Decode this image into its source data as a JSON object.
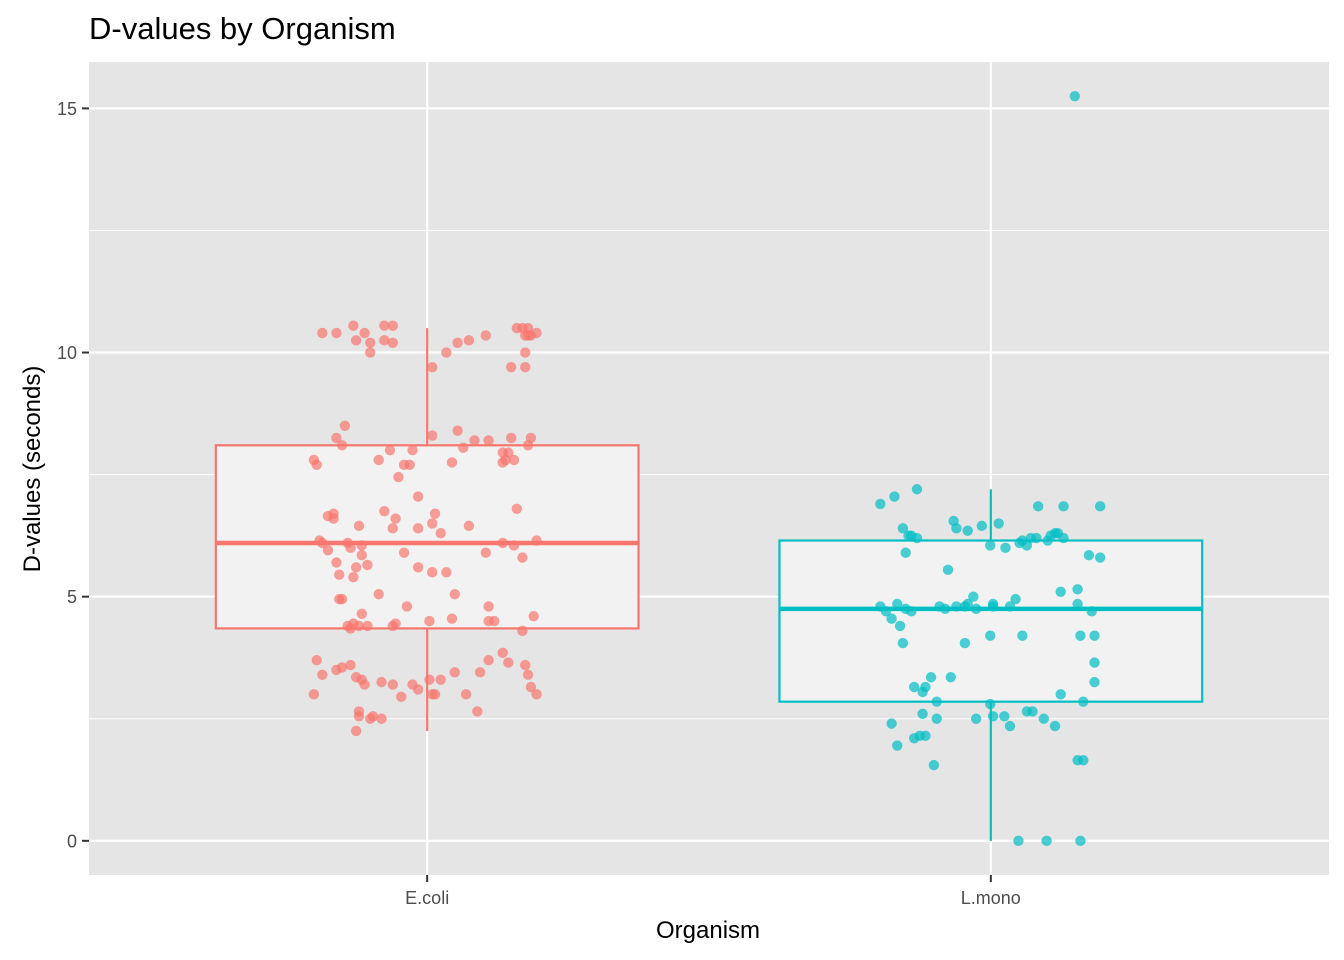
{
  "chart_data": {
    "type": "boxplot",
    "title": "D-values by Organism",
    "xlabel": "Organism",
    "ylabel": "D-values (seconds)",
    "categories": [
      "E.coli",
      "L.mono"
    ],
    "ylim": [
      -0.7,
      15.95
    ],
    "yticks": [
      0,
      5,
      10,
      15
    ],
    "grid": true,
    "legend": "none",
    "background": "#e5e5e5",
    "series": [
      {
        "category": "E.coli",
        "color": "#f8766d",
        "box": {
          "min": 2.25,
          "q1": 4.35,
          "median": 6.1,
          "q3": 8.1,
          "max": 10.5
        },
        "points": [
          [
            -0.186,
            10.4
          ],
          [
            -0.161,
            10.4
          ],
          [
            -0.131,
            10.55
          ],
          [
            -0.126,
            10.25
          ],
          [
            -0.111,
            10.4
          ],
          [
            -0.101,
            10.2
          ],
          [
            -0.101,
            10.0
          ],
          [
            -0.076,
            10.25
          ],
          [
            -0.076,
            10.55
          ],
          [
            -0.061,
            10.2
          ],
          [
            -0.061,
            10.55
          ],
          [
            0.034,
            10.0
          ],
          [
            0.054,
            10.2
          ],
          [
            0.074,
            10.25
          ],
          [
            0.104,
            10.35
          ],
          [
            0.159,
            10.5
          ],
          [
            0.169,
            10.5
          ],
          [
            0.174,
            10.35
          ],
          [
            0.179,
            10.5
          ],
          [
            0.179,
            10.35
          ],
          [
            0.184,
            10.35
          ],
          [
            0.174,
            10.0
          ],
          [
            0.194,
            10.4
          ],
          [
            0.149,
            9.7
          ],
          [
            0.174,
            9.7
          ],
          [
            0.009,
            9.7
          ],
          [
            -0.146,
            8.5
          ],
          [
            -0.161,
            8.25
          ],
          [
            -0.151,
            8.1
          ],
          [
            -0.201,
            7.8
          ],
          [
            -0.196,
            7.7
          ],
          [
            -0.086,
            7.8
          ],
          [
            -0.066,
            8.0
          ],
          [
            -0.051,
            7.45
          ],
          [
            -0.041,
            7.7
          ],
          [
            -0.031,
            7.7
          ],
          [
            -0.026,
            8.0
          ],
          [
            0.009,
            8.3
          ],
          [
            0.044,
            7.75
          ],
          [
            0.054,
            8.4
          ],
          [
            0.084,
            8.2
          ],
          [
            0.064,
            8.05
          ],
          [
            0.109,
            8.2
          ],
          [
            0.134,
            7.95
          ],
          [
            0.134,
            7.75
          ],
          [
            0.139,
            7.8
          ],
          [
            0.144,
            7.95
          ],
          [
            0.149,
            8.25
          ],
          [
            0.154,
            7.8
          ],
          [
            0.179,
            8.1
          ],
          [
            0.184,
            8.25
          ],
          [
            -0.176,
            6.65
          ],
          [
            -0.166,
            6.7
          ],
          [
            -0.166,
            6.6
          ],
          [
            -0.121,
            6.45
          ],
          [
            -0.076,
            6.75
          ],
          [
            -0.061,
            6.4
          ],
          [
            -0.056,
            6.6
          ],
          [
            -0.016,
            7.05
          ],
          [
            -0.016,
            6.4
          ],
          [
            0.009,
            6.5
          ],
          [
            0.014,
            6.7
          ],
          [
            0.024,
            6.3
          ],
          [
            0.074,
            6.45
          ],
          [
            0.159,
            6.8
          ],
          [
            -0.191,
            6.15
          ],
          [
            -0.186,
            6.1
          ],
          [
            -0.176,
            5.95
          ],
          [
            -0.161,
            5.7
          ],
          [
            -0.156,
            5.45
          ],
          [
            -0.141,
            6.1
          ],
          [
            -0.136,
            6.0
          ],
          [
            -0.131,
            5.4
          ],
          [
            -0.126,
            5.6
          ],
          [
            -0.116,
            6.05
          ],
          [
            -0.116,
            5.85
          ],
          [
            -0.106,
            5.65
          ],
          [
            -0.041,
            5.9
          ],
          [
            -0.016,
            5.6
          ],
          [
            0.009,
            5.5
          ],
          [
            0.034,
            5.5
          ],
          [
            0.104,
            5.9
          ],
          [
            0.134,
            6.1
          ],
          [
            0.154,
            6.05
          ],
          [
            0.169,
            5.8
          ],
          [
            0.194,
            6.15
          ],
          [
            -0.156,
            4.95
          ],
          [
            -0.151,
            4.95
          ],
          [
            -0.116,
            4.65
          ],
          [
            -0.086,
            5.05
          ],
          [
            -0.036,
            4.8
          ],
          [
            -0.056,
            4.45
          ],
          [
            -0.061,
            4.4
          ],
          [
            0.004,
            4.5
          ],
          [
            0.049,
            5.05
          ],
          [
            0.044,
            4.55
          ],
          [
            0.109,
            4.8
          ],
          [
            0.109,
            4.5
          ],
          [
            0.119,
            4.5
          ],
          [
            0.169,
            4.3
          ],
          [
            0.189,
            4.6
          ],
          [
            -0.141,
            4.4
          ],
          [
            -0.131,
            4.45
          ],
          [
            -0.136,
            4.35
          ],
          [
            -0.121,
            4.4
          ],
          [
            -0.106,
            4.4
          ],
          [
            -0.196,
            3.7
          ],
          [
            -0.186,
            3.4
          ],
          [
            -0.161,
            3.5
          ],
          [
            -0.151,
            3.55
          ],
          [
            -0.136,
            3.6
          ],
          [
            -0.126,
            3.35
          ],
          [
            -0.116,
            3.3
          ],
          [
            -0.111,
            3.2
          ],
          [
            -0.081,
            3.25
          ],
          [
            -0.061,
            3.2
          ],
          [
            -0.046,
            2.95
          ],
          [
            -0.026,
            3.2
          ],
          [
            -0.016,
            3.1
          ],
          [
            0.004,
            3.3
          ],
          [
            0.009,
            3.0
          ],
          [
            0.014,
            3.0
          ],
          [
            0.024,
            3.3
          ],
          [
            0.049,
            3.45
          ],
          [
            0.069,
            3.0
          ],
          [
            0.094,
            3.45
          ],
          [
            0.109,
            3.7
          ],
          [
            0.134,
            3.85
          ],
          [
            0.144,
            3.65
          ],
          [
            0.174,
            3.6
          ],
          [
            0.179,
            3.4
          ],
          [
            0.184,
            3.15
          ],
          [
            0.194,
            3.0
          ],
          [
            -0.201,
            3.0
          ],
          [
            -0.121,
            2.65
          ],
          [
            -0.121,
            2.55
          ],
          [
            -0.101,
            2.5
          ],
          [
            -0.096,
            2.55
          ],
          [
            -0.081,
            2.5
          ],
          [
            -0.126,
            2.25
          ],
          [
            0.089,
            2.65
          ]
        ]
      },
      {
        "category": "L.mono",
        "color": "#00bfc4",
        "box": {
          "min": 0.0,
          "q1": 2.85,
          "median": 4.75,
          "q3": 6.15,
          "max": 7.2
        },
        "points": [
          [
            0.149,
            15.25
          ],
          [
            -0.196,
            6.9
          ],
          [
            -0.171,
            7.05
          ],
          [
            -0.131,
            7.2
          ],
          [
            -0.156,
            6.4
          ],
          [
            -0.146,
            6.25
          ],
          [
            -0.141,
            6.25
          ],
          [
            -0.131,
            6.2
          ],
          [
            -0.151,
            5.9
          ],
          [
            -0.066,
            6.55
          ],
          [
            -0.061,
            6.4
          ],
          [
            -0.041,
            6.35
          ],
          [
            -0.016,
            6.45
          ],
          [
            0.014,
            6.5
          ],
          [
            -0.001,
            6.05
          ],
          [
            0.026,
            6.0
          ],
          [
            0.051,
            6.1
          ],
          [
            0.056,
            6.15
          ],
          [
            0.064,
            6.05
          ],
          [
            0.071,
            6.2
          ],
          [
            0.081,
            6.2
          ],
          [
            0.101,
            6.15
          ],
          [
            0.106,
            6.25
          ],
          [
            0.114,
            6.3
          ],
          [
            0.119,
            6.3
          ],
          [
            0.129,
            6.2
          ],
          [
            0.084,
            6.85
          ],
          [
            0.129,
            6.85
          ],
          [
            0.194,
            6.85
          ],
          [
            0.174,
            5.85
          ],
          [
            0.194,
            5.8
          ],
          [
            -0.076,
            5.55
          ],
          [
            -0.196,
            4.8
          ],
          [
            -0.186,
            4.7
          ],
          [
            -0.176,
            4.55
          ],
          [
            -0.166,
            4.85
          ],
          [
            -0.151,
            4.75
          ],
          [
            -0.141,
            4.7
          ],
          [
            -0.091,
            4.8
          ],
          [
            -0.081,
            4.75
          ],
          [
            -0.061,
            4.8
          ],
          [
            -0.046,
            4.8
          ],
          [
            -0.041,
            4.85
          ],
          [
            -0.031,
            5.0
          ],
          [
            -0.026,
            4.75
          ],
          [
            0.004,
            4.8
          ],
          [
            0.004,
            4.85
          ],
          [
            0.034,
            4.8
          ],
          [
            0.044,
            4.95
          ],
          [
            0.124,
            5.1
          ],
          [
            0.154,
            5.15
          ],
          [
            0.154,
            4.85
          ],
          [
            0.179,
            4.7
          ],
          [
            -0.161,
            4.4
          ],
          [
            -0.156,
            4.05
          ],
          [
            -0.046,
            4.05
          ],
          [
            -0.001,
            4.2
          ],
          [
            0.056,
            4.2
          ],
          [
            0.159,
            4.2
          ],
          [
            0.184,
            4.2
          ],
          [
            -0.136,
            3.15
          ],
          [
            -0.121,
            3.05
          ],
          [
            -0.116,
            3.15
          ],
          [
            -0.106,
            3.35
          ],
          [
            -0.096,
            2.85
          ],
          [
            -0.071,
            3.35
          ],
          [
            -0.001,
            2.8
          ],
          [
            0.064,
            2.65
          ],
          [
            0.074,
            2.65
          ],
          [
            0.124,
            3.0
          ],
          [
            0.164,
            2.85
          ],
          [
            0.184,
            3.25
          ],
          [
            0.184,
            3.65
          ],
          [
            -0.121,
            2.6
          ],
          [
            -0.096,
            2.5
          ],
          [
            -0.026,
            2.5
          ],
          [
            0.004,
            2.55
          ],
          [
            0.024,
            2.55
          ],
          [
            0.034,
            2.35
          ],
          [
            0.094,
            2.5
          ],
          [
            0.114,
            2.35
          ],
          [
            -0.176,
            2.4
          ],
          [
            -0.166,
            1.95
          ],
          [
            -0.136,
            2.1
          ],
          [
            -0.126,
            2.15
          ],
          [
            -0.116,
            2.15
          ],
          [
            -0.101,
            1.55
          ],
          [
            0.154,
            1.65
          ],
          [
            0.164,
            1.65
          ],
          [
            0.049,
            0.0
          ],
          [
            0.099,
            0.0
          ],
          [
            0.159,
            0.0
          ]
        ]
      }
    ]
  }
}
